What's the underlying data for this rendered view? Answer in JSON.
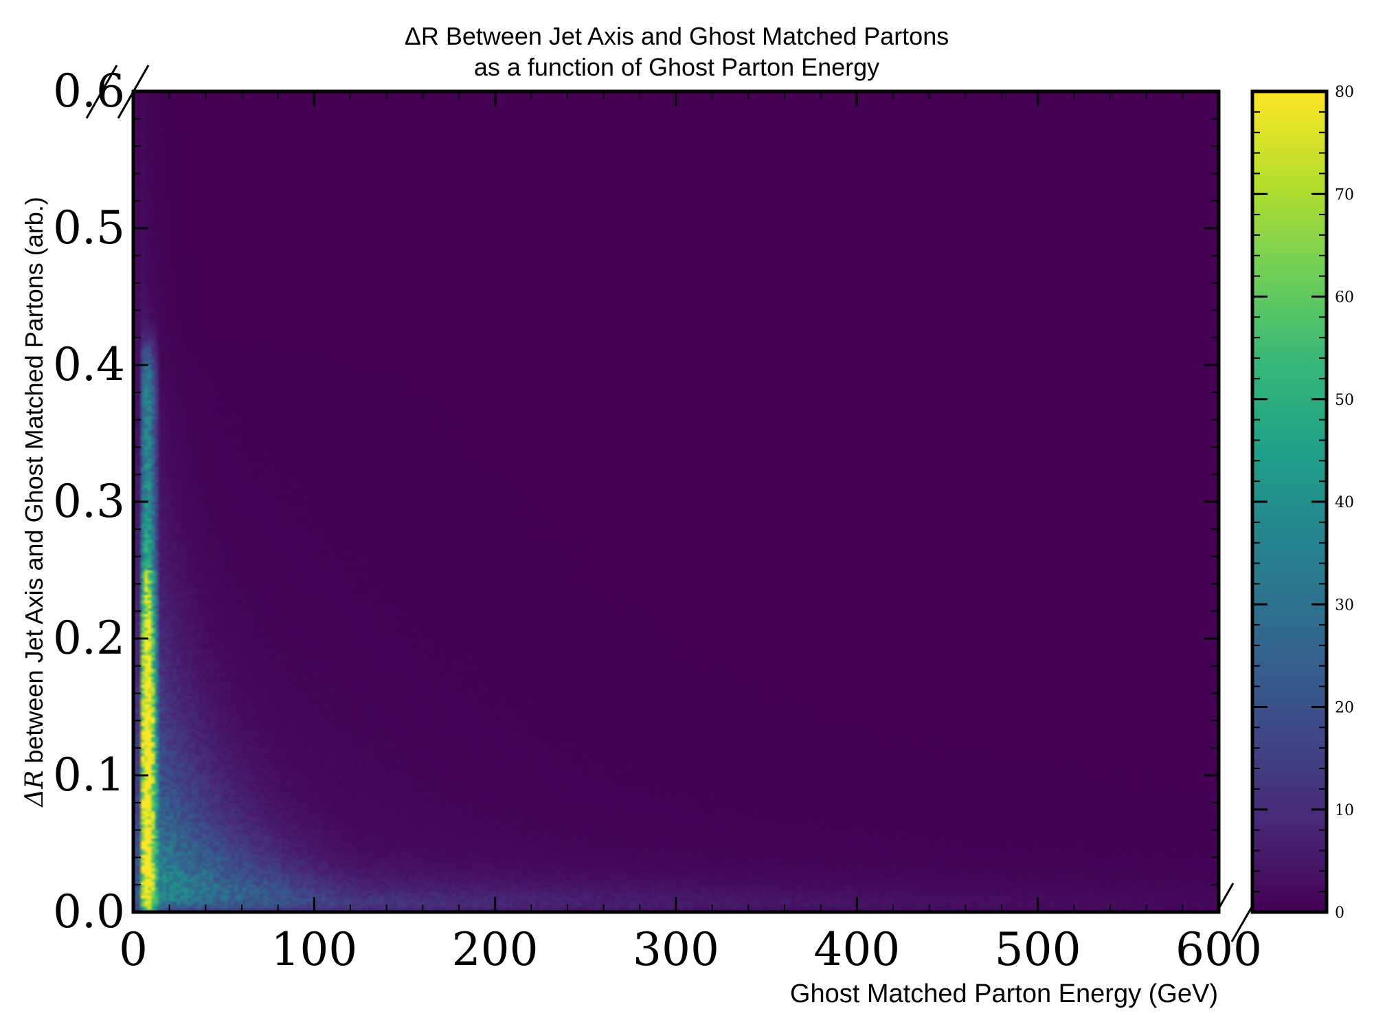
{
  "chart_data": {
    "type": "heatmap",
    "title_line1": "ΔR Between Jet Axis and Ghost Matched Partons",
    "title_line2": "as a function of Ghost Parton Energy",
    "xlabel": "Ghost Matched Parton Energy (GeV)",
    "ylabel_symbol": "ΔR",
    "ylabel_rest": " between Jet Axis and Ghost Matched Partons (arb.)",
    "xlim": [
      0,
      600
    ],
    "ylim": [
      0,
      0.6
    ],
    "x_ticks": [
      {
        "value": 0,
        "label": "0"
      },
      {
        "value": 100,
        "label": "100"
      },
      {
        "value": 200,
        "label": "200"
      },
      {
        "value": 300,
        "label": "300"
      },
      {
        "value": 400,
        "label": "400"
      },
      {
        "value": 500,
        "label": "500"
      },
      {
        "value": 600,
        "label": "600"
      }
    ],
    "y_ticks": [
      {
        "value": 0.0,
        "label": "0.0"
      },
      {
        "value": 0.1,
        "label": "0.1"
      },
      {
        "value": 0.2,
        "label": "0.2"
      },
      {
        "value": 0.3,
        "label": "0.3"
      },
      {
        "value": 0.4,
        "label": "0.4"
      },
      {
        "value": 0.5,
        "label": "0.5"
      },
      {
        "value": 0.6,
        "label": "0.6"
      }
    ],
    "colorbar": {
      "min": 0,
      "max": 80,
      "colormap": "viridis",
      "ticks": [
        {
          "value": 0,
          "label": "0"
        },
        {
          "value": 10,
          "label": "10"
        },
        {
          "value": 20,
          "label": "20"
        },
        {
          "value": 30,
          "label": "30"
        },
        {
          "value": 40,
          "label": "40"
        },
        {
          "value": 50,
          "label": "50"
        },
        {
          "value": 60,
          "label": "60"
        },
        {
          "value": 70,
          "label": "70"
        },
        {
          "value": 80,
          "label": "80"
        }
      ]
    },
    "distribution": {
      "description_units": "counts per bin; max near E≈10 GeV, ΔR≈0.15",
      "bins_x": 300,
      "bins_y": 300,
      "peak_counts": 75,
      "ridge_energy_GeV": 8,
      "ridge_max_dR": 0.41,
      "falloff_scale_GeV": 40
    },
    "viridis_stops": [
      "#440154",
      "#482878",
      "#3e4989",
      "#31688e",
      "#26828e",
      "#1f9e89",
      "#35b779",
      "#6ece58",
      "#b5de2b",
      "#fde725"
    ],
    "grid": false,
    "legend": "none"
  }
}
